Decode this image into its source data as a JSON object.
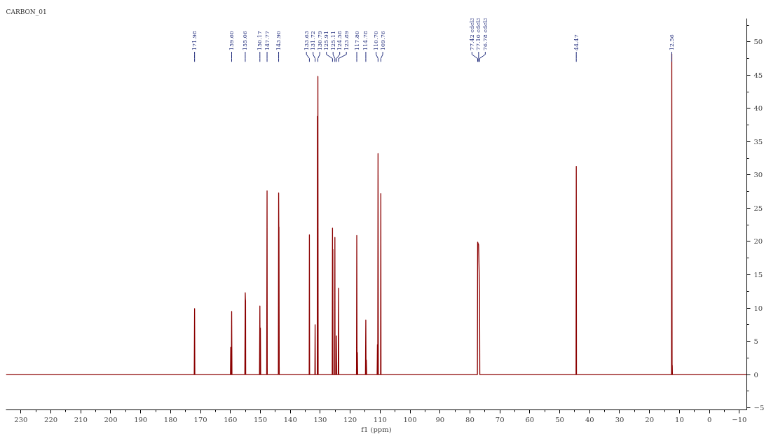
{
  "chart_data": {
    "type": "line",
    "title": "CARBON_01",
    "xlabel": "f1 (ppm)",
    "xlim": [
      235,
      -12.5
    ],
    "xticks": [
      230,
      220,
      210,
      200,
      190,
      180,
      170,
      160,
      150,
      140,
      130,
      120,
      110,
      100,
      90,
      80,
      70,
      60,
      50,
      40,
      30,
      20,
      10,
      0,
      -10
    ],
    "ylim": [
      -5.3,
      53.5
    ],
    "yticks": [
      -5,
      0,
      5,
      10,
      15,
      20,
      25,
      30,
      35,
      40,
      45,
      50
    ],
    "grid": false,
    "marker": "none",
    "line_style": "solid",
    "series": [
      {
        "color": "#8b0000",
        "x": [
          235,
          172.1,
          171.98,
          171.9,
          160.0,
          159.9,
          159.8,
          159.7,
          159.6,
          159.5,
          155.2,
          155.06,
          155.0,
          154.95,
          154.9,
          150.3,
          150.17,
          150.1,
          150.0,
          149.9,
          147.9,
          147.77,
          147.7,
          144.0,
          143.9,
          143.85,
          143.8,
          143.7,
          133.7,
          133.63,
          133.55,
          131.8,
          131.72,
          131.65,
          131.0,
          130.95,
          130.9,
          130.85,
          130.79,
          130.7,
          126.0,
          125.91,
          125.85,
          125.8,
          125.75,
          125.2,
          125.11,
          125.05,
          124.65,
          124.58,
          124.5,
          124.0,
          123.89,
          123.8,
          117.9,
          117.8,
          117.7,
          117.6,
          117.5,
          114.9,
          114.78,
          114.7,
          114.6,
          114.5,
          111.0,
          110.9,
          110.8,
          110.7,
          110.6,
          109.85,
          109.76,
          109.7,
          77.5,
          77.42,
          77.1,
          76.78,
          76.7,
          44.55,
          44.47,
          44.4,
          12.65,
          12.56,
          12.45,
          12.4,
          12.35,
          -12.5
        ],
        "values": [
          0,
          0,
          9.9,
          0,
          0,
          4.1,
          0,
          0,
          9.5,
          0,
          0,
          12.3,
          11.2,
          11.2,
          0,
          0,
          10.3,
          0,
          7.0,
          0,
          0,
          27.6,
          0,
          0,
          27.3,
          22.2,
          22.2,
          0,
          0,
          21.0,
          0,
          0,
          7.5,
          0,
          0,
          38.8,
          38.8,
          0,
          44.8,
          0,
          0,
          22.0,
          0,
          18.8,
          0,
          0,
          20.6,
          0,
          0,
          5.8,
          0,
          0,
          13.0,
          0,
          0,
          20.9,
          0,
          3.3,
          0,
          0,
          8.2,
          0,
          2.2,
          0,
          0,
          4.5,
          0,
          33.2,
          0,
          0,
          27.2,
          0,
          0,
          19.9,
          19.5,
          12.5,
          0,
          0,
          31.3,
          0,
          0,
          48.2,
          0,
          1.4,
          0,
          0
        ]
      }
    ],
    "annotations": [
      {
        "text": "171.98",
        "x": 171.98
      },
      {
        "text": "159.60",
        "x": 159.6
      },
      {
        "text": "155.06",
        "x": 155.06
      },
      {
        "text": "150.17",
        "x": 150.17
      },
      {
        "text": "147.77",
        "x": 147.77
      },
      {
        "text": "143.90",
        "x": 143.9
      },
      {
        "text": "133.63",
        "x": 133.63
      },
      {
        "text": "131.72",
        "x": 131.72
      },
      {
        "text": "130.79",
        "x": 130.79
      },
      {
        "text": "125.91",
        "x": 125.91
      },
      {
        "text": "125.11",
        "x": 125.11
      },
      {
        "text": "124.58",
        "x": 124.58
      },
      {
        "text": "123.89",
        "x": 123.89
      },
      {
        "text": "117.80",
        "x": 117.8
      },
      {
        "text": "114.78",
        "x": 114.78
      },
      {
        "text": "110.70",
        "x": 110.7
      },
      {
        "text": "109.76",
        "x": 109.76
      },
      {
        "text": "77.42 cdcl3",
        "x": 77.42
      },
      {
        "text": "77.10 cdcl3",
        "x": 77.1
      },
      {
        "text": "76.78 cdcl3",
        "x": 76.78
      },
      {
        "text": "44.47",
        "x": 44.47
      },
      {
        "text": "12.56",
        "x": 12.56
      }
    ]
  }
}
